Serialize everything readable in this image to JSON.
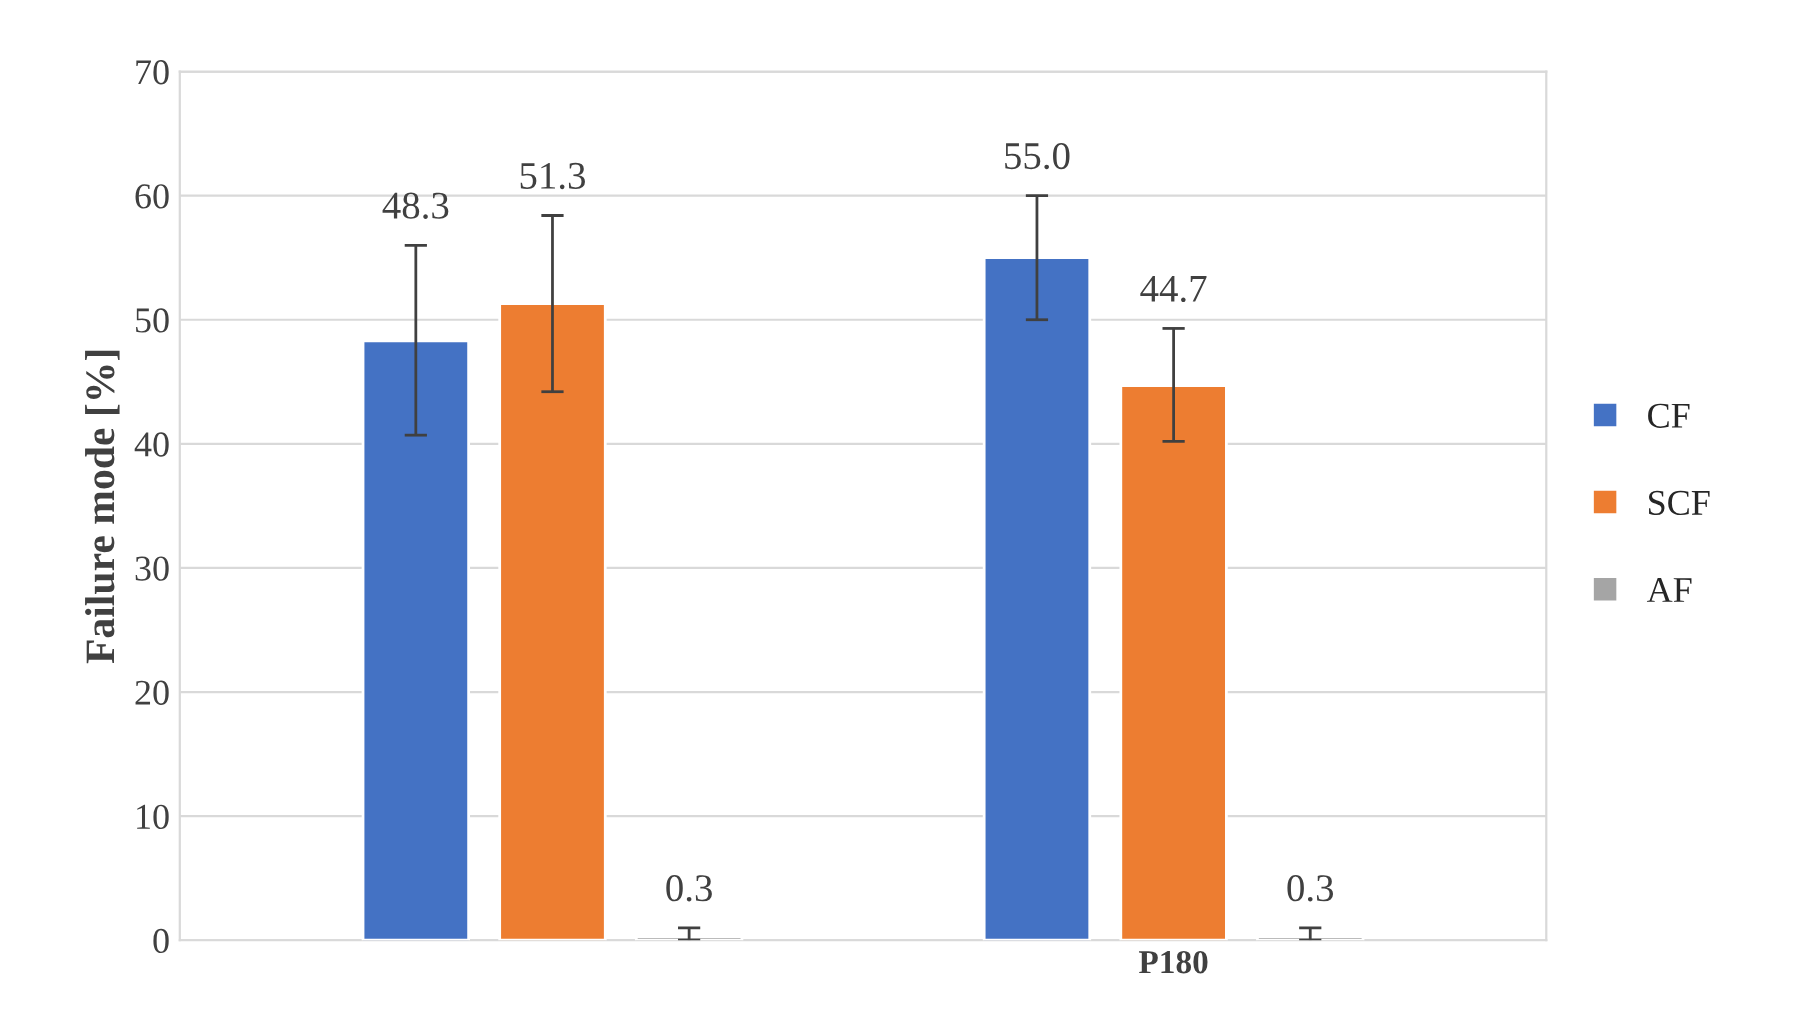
{
  "chart_data": {
    "type": "bar",
    "ylabel": "Failure mode [%]",
    "categories": [
      null,
      "P180"
    ],
    "series": [
      {
        "name": "CF",
        "color": "#4472c4",
        "values": [
          48.3,
          55.0
        ],
        "errors": [
          [
            40.7,
            56.0
          ],
          [
            50.0,
            60.0
          ]
        ],
        "value_labels": [
          "48.3",
          "55.0"
        ]
      },
      {
        "name": "SCF",
        "color": "#ed7d31",
        "values": [
          51.3,
          44.7
        ],
        "errors": [
          [
            44.2,
            58.4
          ],
          [
            40.2,
            49.3
          ]
        ],
        "value_labels": [
          "51.3",
          "44.7"
        ]
      },
      {
        "name": "AF",
        "color": "#a5a5a5",
        "values": [
          0.3,
          0.3
        ],
        "errors": [
          [
            0,
            1.0
          ],
          [
            0,
            1.0
          ]
        ],
        "value_labels": [
          "0.3",
          "0.3"
        ]
      }
    ],
    "ylim": [
      0,
      70
    ],
    "yticks": [
      0,
      10,
      20,
      30,
      40,
      50,
      60,
      70
    ],
    "grid": "y",
    "legend": "right"
  }
}
